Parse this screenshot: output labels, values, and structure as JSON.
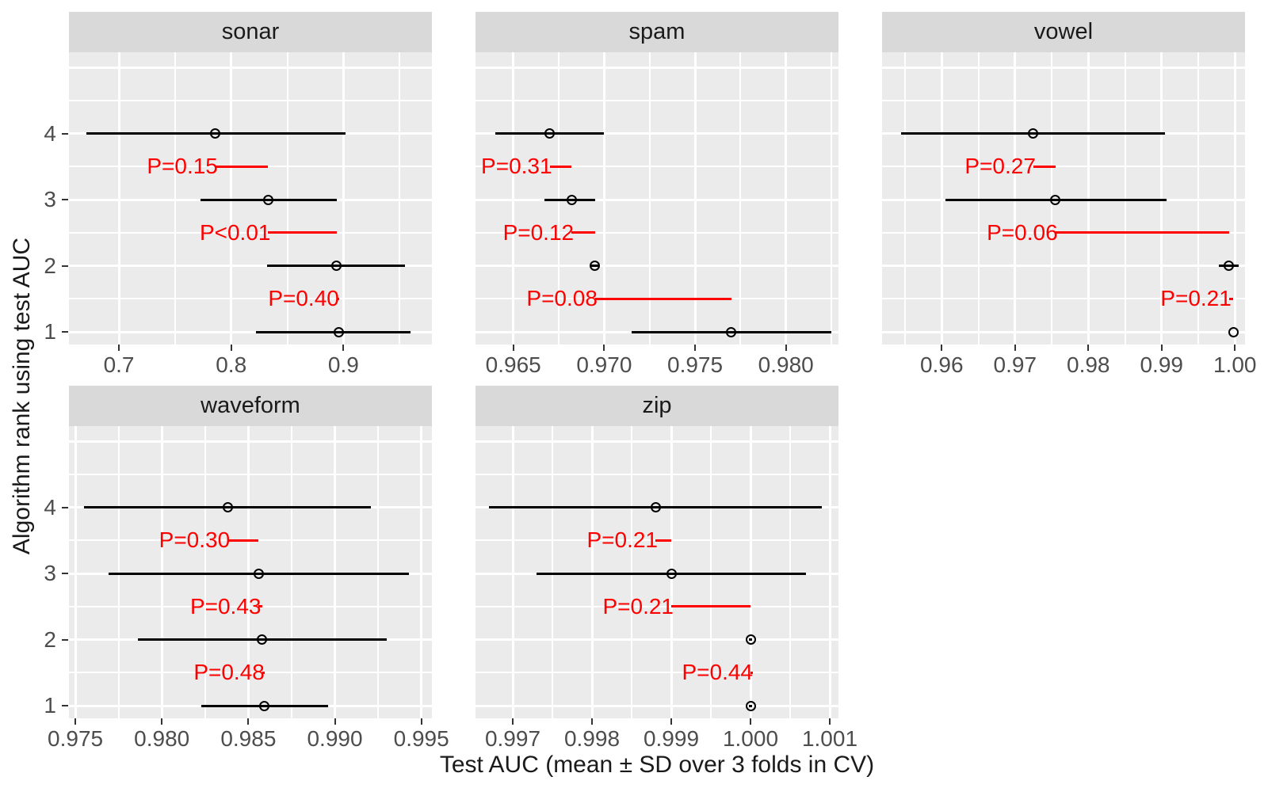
{
  "figure": {
    "x_axis_title": "Test AUC (mean ± SD over 3 folds in CV)",
    "y_axis_title": "Algorithm rank using test AUC",
    "y_tick_labels": [
      "4",
      "3",
      "2",
      "1"
    ],
    "colors": {
      "accent_red": "#ff0000",
      "panel_background": "#ebebeb",
      "strip_background": "#d9d9d9",
      "gridline": "#ffffff",
      "axis_text": "#4d4d4d",
      "data_black": "#000000"
    }
  },
  "chart_data": {
    "type": "pointrange",
    "orientation": "horizontal",
    "interval": "mean ± SD",
    "point_shape": "open-circle",
    "y_label_ranks": [
      4,
      3,
      2,
      1
    ],
    "y_domain": [
      0.81,
      5.23
    ],
    "y_major_gridlines": [
      1,
      2,
      3,
      4,
      5
    ],
    "y_minor_gridlines": [
      1.5,
      2.5,
      3.5,
      4.5
    ],
    "facets": [
      {
        "label": "sonar",
        "xlim": [
          0.6555,
          0.9788
        ],
        "ticks": [
          {
            "value": 0.7,
            "label": "0.7"
          },
          {
            "value": 0.8,
            "label": "0.8"
          },
          {
            "value": 0.9,
            "label": "0.9"
          }
        ],
        "points": [
          {
            "rank": 4,
            "mean": 0.786,
            "lower": 0.671,
            "upper": 0.902
          },
          {
            "rank": 3,
            "mean": 0.833,
            "lower": 0.773,
            "upper": 0.894
          },
          {
            "rank": 2,
            "mean": 0.894,
            "lower": 0.832,
            "upper": 0.955
          },
          {
            "rank": 1,
            "mean": 0.896,
            "lower": 0.822,
            "upper": 0.96
          }
        ],
        "p_values": [
          {
            "row": 3.5,
            "label": "P=0.15",
            "x_start": 0.786,
            "x_end": 0.833
          },
          {
            "row": 2.5,
            "label": "P<0.01",
            "x_start": 0.833,
            "x_end": 0.894
          },
          {
            "row": 1.5,
            "label": "P=0.40",
            "x_start": 0.894,
            "x_end": 0.896
          }
        ]
      },
      {
        "label": "spam",
        "xlim": [
          0.96292,
          0.98289
        ],
        "ticks": [
          {
            "value": 0.965,
            "label": "0.965"
          },
          {
            "value": 0.97,
            "label": "0.970"
          },
          {
            "value": 0.975,
            "label": "0.975"
          },
          {
            "value": 0.98,
            "label": "0.980"
          }
        ],
        "points": [
          {
            "rank": 4,
            "mean": 0.967,
            "lower": 0.964,
            "upper": 0.97
          },
          {
            "rank": 3,
            "mean": 0.9682,
            "lower": 0.9667,
            "upper": 0.9695
          },
          {
            "rank": 2,
            "mean": 0.9695,
            "lower": 0.9693,
            "upper": 0.9697
          },
          {
            "rank": 1,
            "mean": 0.977,
            "lower": 0.9715,
            "upper": 0.9825
          }
        ],
        "p_values": [
          {
            "row": 3.5,
            "label": "P=0.31",
            "x_start": 0.967,
            "x_end": 0.9682
          },
          {
            "row": 2.5,
            "label": "P=0.12",
            "x_start": 0.9682,
            "x_end": 0.9695
          },
          {
            "row": 1.5,
            "label": "P=0.08",
            "x_start": 0.9695,
            "x_end": 0.977
          }
        ]
      },
      {
        "label": "vowel",
        "xlim": [
          0.95186,
          1.00138
        ],
        "ticks": [
          {
            "value": 0.96,
            "label": "0.96"
          },
          {
            "value": 0.97,
            "label": "0.97"
          },
          {
            "value": 0.98,
            "label": "0.98"
          },
          {
            "value": 0.99,
            "label": "0.99"
          },
          {
            "value": 1.0,
            "label": "1.00"
          }
        ],
        "points": [
          {
            "rank": 4,
            "mean": 0.9725,
            "lower": 0.9545,
            "upper": 0.9905
          },
          {
            "rank": 3,
            "mean": 0.9755,
            "lower": 0.9605,
            "upper": 0.9907
          },
          {
            "rank": 2,
            "mean": 0.9992,
            "lower": 0.9978,
            "upper": 1.0005
          },
          {
            "rank": 1,
            "mean": 0.9998,
            "lower": 0.9998,
            "upper": 0.9998
          }
        ],
        "p_values": [
          {
            "row": 3.5,
            "label": "P=0.27",
            "x_start": 0.9725,
            "x_end": 0.9755
          },
          {
            "row": 2.5,
            "label": "P=0.06",
            "x_start": 0.9755,
            "x_end": 0.9992
          },
          {
            "row": 1.5,
            "label": "P=0.21",
            "x_start": 0.9992,
            "x_end": 0.9998
          }
        ]
      },
      {
        "label": "waveform",
        "xlim": [
          0.97463,
          0.99561
        ],
        "ticks": [
          {
            "value": 0.975,
            "label": "0.975"
          },
          {
            "value": 0.98,
            "label": "0.980"
          },
          {
            "value": 0.985,
            "label": "0.985"
          },
          {
            "value": 0.99,
            "label": "0.990"
          },
          {
            "value": 0.995,
            "label": "0.995"
          }
        ],
        "points": [
          {
            "rank": 4,
            "mean": 0.9838,
            "lower": 0.9755,
            "upper": 0.9921
          },
          {
            "rank": 3,
            "mean": 0.9856,
            "lower": 0.9769,
            "upper": 0.9943
          },
          {
            "rank": 2,
            "mean": 0.9858,
            "lower": 0.9786,
            "upper": 0.993
          },
          {
            "rank": 1,
            "mean": 0.9859,
            "lower": 0.9823,
            "upper": 0.9896
          }
        ],
        "p_values": [
          {
            "row": 3.5,
            "label": "P=0.30",
            "x_start": 0.9838,
            "x_end": 0.9856
          },
          {
            "row": 2.5,
            "label": "P=0.43",
            "x_start": 0.9856,
            "x_end": 0.9858
          },
          {
            "row": 1.5,
            "label": "P=0.48",
            "x_start": 0.9858,
            "x_end": 0.9859
          }
        ]
      },
      {
        "label": "zip",
        "xlim": [
          0.99653,
          1.00111
        ],
        "ticks": [
          {
            "value": 0.997,
            "label": "0.997"
          },
          {
            "value": 0.998,
            "label": "0.998"
          },
          {
            "value": 0.999,
            "label": "0.999"
          },
          {
            "value": 1.0,
            "label": "1.000"
          },
          {
            "value": 1.001,
            "label": "1.001"
          }
        ],
        "points": [
          {
            "rank": 4,
            "mean": 0.9988,
            "lower": 0.9967,
            "upper": 1.0009
          },
          {
            "rank": 3,
            "mean": 0.999,
            "lower": 0.9973,
            "upper": 1.0007
          },
          {
            "rank": 2,
            "mean": 1.0,
            "lower": 0.99998,
            "upper": 1.00002
          },
          {
            "rank": 1,
            "mean": 1.0,
            "lower": 0.99998,
            "upper": 1.00002
          }
        ],
        "p_values": [
          {
            "row": 3.5,
            "label": "P=0.21",
            "x_start": 0.9988,
            "x_end": 0.999
          },
          {
            "row": 2.5,
            "label": "P=0.21",
            "x_start": 0.999,
            "x_end": 1.0
          },
          {
            "row": 1.5,
            "label": "P=0.44",
            "x_start": 1.0,
            "x_end": 1.0
          }
        ]
      }
    ]
  }
}
